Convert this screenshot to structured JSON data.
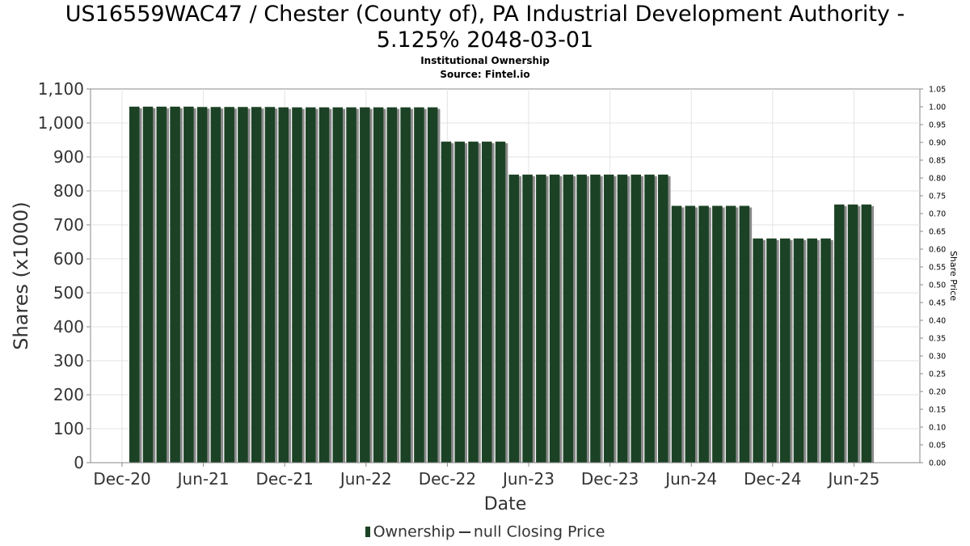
{
  "header": {
    "title_line1": "US16559WAC47 / Chester (County of), PA Industrial Development Authority -",
    "title_line2": "5.125% 2048-03-01",
    "subtitle": "Institutional Ownership",
    "source": "Source: Fintel.io"
  },
  "legend": {
    "ownership_label": "Ownership",
    "price_label": "null Closing Price"
  },
  "colors": {
    "bar": "#1c4225",
    "bar_shadow": "#8a8a8a",
    "grid": "#e3e3e3",
    "axis": "#888888"
  },
  "chart_data": {
    "type": "bar",
    "title": "US16559WAC47 / Chester (County of), PA Industrial Development Authority - 5.125% 2048-03-01",
    "xlabel": "Date",
    "ylabel": "Shares (x1000)",
    "y2label": "Share Price",
    "ylim": [
      0,
      1100
    ],
    "y2lim": [
      0,
      1.05
    ],
    "y_ticks": [
      "0",
      "100",
      "200",
      "300",
      "400",
      "500",
      "600",
      "700",
      "800",
      "900",
      "1,000",
      "1,100"
    ],
    "y2_ticks": [
      "0.00",
      "0.05",
      "0.10",
      "0.15",
      "0.20",
      "0.25",
      "0.30",
      "0.35",
      "0.40",
      "0.45",
      "0.50",
      "0.55",
      "0.60",
      "0.65",
      "0.70",
      "0.75",
      "0.80",
      "0.85",
      "0.90",
      "0.95",
      "1.00",
      "1.05"
    ],
    "x_ticks": [
      "Dec-20",
      "Jun-21",
      "Dec-21",
      "Jun-22",
      "Dec-22",
      "Jun-23",
      "Dec-23",
      "Jun-24",
      "Dec-24",
      "Jun-25"
    ],
    "grid": true,
    "legend_position": "bottom-center",
    "series": [
      {
        "name": "Ownership",
        "values": [
          1048,
          1048,
          1048,
          1048,
          1048,
          1047,
          1047,
          1047,
          1047,
          1047,
          1047,
          1046,
          1046,
          1046,
          1046,
          1046,
          1046,
          1046,
          1046,
          1046,
          1046,
          1046,
          1046,
          945,
          945,
          945,
          945,
          945,
          848,
          848,
          848,
          848,
          848,
          848,
          848,
          848,
          848,
          848,
          848,
          848,
          756,
          756,
          756,
          756,
          756,
          756,
          660,
          660,
          660,
          660,
          660,
          660,
          760,
          760,
          760
        ]
      },
      {
        "name": "null Closing Price",
        "values": []
      }
    ]
  }
}
